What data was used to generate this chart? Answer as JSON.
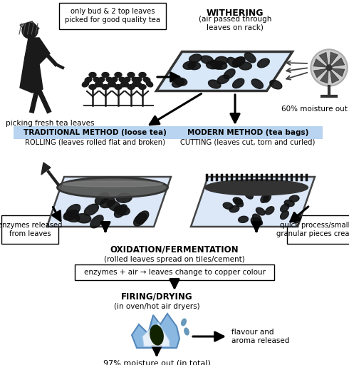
{
  "bg_color": "#ffffff",
  "figsize": [
    4.9,
    5.12
  ],
  "dpi": 100,
  "top_note": "only bud & 2 top leaves\npicked for good quality tea",
  "picking_label": "picking fresh tea leaves",
  "withering_title": "WITHERING",
  "withering_sub": "(air passed through\nleaves on rack)",
  "withering_note": "60% moisture out",
  "trad_label": "TRADITIONAL METHOD (loose tea)",
  "trad_sub": "ROLLING (leaves rolled flat and broken)",
  "trad_bg": "#b8d4f0",
  "modern_label": "MODERN METHOD (tea bags)",
  "modern_sub": "CUTTING (leaves cut, torn and curled)",
  "modern_bg": "#b8d4f0",
  "enzymes_label": "enzymes released\nfrom leaves",
  "quick_label": "quick process/smaller\ngranular pieces created",
  "oxidation_title": "OXIDATION/FERMENTATION",
  "oxidation_sub": "(rolled leaves spread on tiles/cement)",
  "oxidation_box": "enzymes + air → leaves change to copper colour",
  "firing_title": "FIRING/DRYING",
  "firing_sub": "(in oven/hot air dryers)",
  "firing_note": "flavour and\naroma released",
  "final_note": "97% moisture out (in total)"
}
